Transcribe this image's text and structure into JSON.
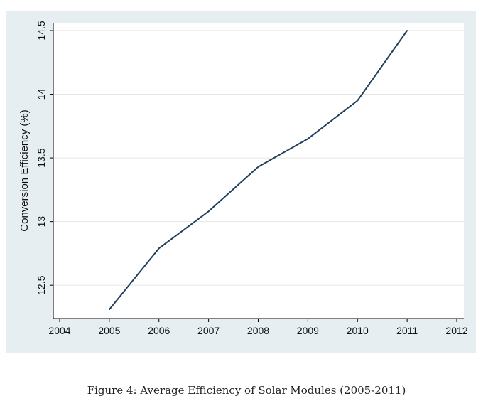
{
  "chart_data": {
    "type": "line",
    "title": "",
    "xlabel": "",
    "ylabel": "Conversion Efficiency (%)",
    "xlim": [
      2004,
      2012
    ],
    "ylim": [
      12.3,
      14.5
    ],
    "xticks": [
      2004,
      2005,
      2006,
      2007,
      2008,
      2009,
      2010,
      2011,
      2012
    ],
    "yticks": [
      12.5,
      13,
      13.5,
      14,
      14.5
    ],
    "grid": "horizontal",
    "legend": "none",
    "series": [
      {
        "x": [
          2005,
          2006,
          2007,
          2008,
          2009,
          2010,
          2011
        ],
        "y": [
          12.31,
          12.79,
          13.08,
          13.43,
          13.65,
          13.95,
          14.5
        ]
      }
    ]
  },
  "colors": {
    "background": "#e6eef1",
    "plot_area": "#ffffff",
    "line": "#1f3f5f",
    "grid": "#e6e6e6"
  },
  "caption": "Figure 4: Average Efficiency of Solar Modules (2005-2011)"
}
